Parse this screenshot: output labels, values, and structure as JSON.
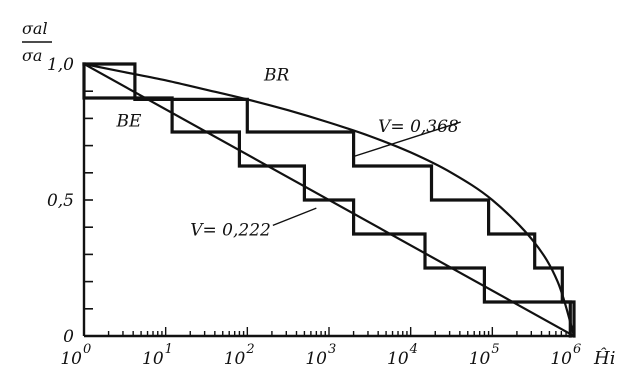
{
  "chart_data": {
    "type": "line",
    "y_axis_label": {
      "numerator": "σal",
      "denominator": "σa"
    },
    "x_axis_label": "Ĥi",
    "x_scale": "log",
    "xlim": [
      1,
      1000000
    ],
    "ylim": [
      0,
      1.0
    ],
    "x_ticks": [
      {
        "value": 1,
        "base": "10",
        "exp": "0"
      },
      {
        "value": 10,
        "base": "10",
        "exp": "1"
      },
      {
        "value": 100,
        "base": "10",
        "exp": "2"
      },
      {
        "value": 1000,
        "base": "10",
        "exp": "3"
      },
      {
        "value": 10000,
        "base": "10",
        "exp": "4"
      },
      {
        "value": 100000,
        "base": "10",
        "exp": "5"
      },
      {
        "value": 1000000,
        "base": "10",
        "exp": "6"
      }
    ],
    "y_ticks": [
      {
        "value": 0,
        "label": "0"
      },
      {
        "value": 0.5,
        "label": "0,5"
      },
      {
        "value": 1.0,
        "label": "1,0"
      }
    ],
    "series": [
      {
        "name": "BR",
        "kind": "curve",
        "points": [
          [
            1,
            1.0
          ],
          [
            3.16,
            0.97
          ],
          [
            10,
            0.94
          ],
          [
            31.6,
            0.905
          ],
          [
            100,
            0.87
          ],
          [
            316,
            0.83
          ],
          [
            1000,
            0.785
          ],
          [
            3160,
            0.735
          ],
          [
            10000,
            0.675
          ],
          [
            31600,
            0.6
          ],
          [
            100000,
            0.5
          ],
          [
            316000,
            0.35
          ],
          [
            630000,
            0.2
          ],
          [
            1000000,
            0.0
          ]
        ]
      },
      {
        "name": "BE",
        "kind": "line",
        "points": [
          [
            1,
            1.0
          ],
          [
            1000000,
            0.0
          ]
        ]
      },
      {
        "name": "V = 0,368",
        "kind": "step",
        "points": [
          [
            1,
            1.0
          ],
          [
            4.2,
            1.0
          ],
          [
            4.2,
            0.87
          ],
          [
            100,
            0.87
          ],
          [
            100,
            0.75
          ],
          [
            2000,
            0.75
          ],
          [
            2000,
            0.625
          ],
          [
            18000,
            0.625
          ],
          [
            18000,
            0.5
          ],
          [
            90000,
            0.5
          ],
          [
            90000,
            0.375
          ],
          [
            330000,
            0.375
          ],
          [
            330000,
            0.25
          ],
          [
            720000,
            0.25
          ],
          [
            720000,
            0.125
          ],
          [
            1000000,
            0.125
          ],
          [
            1000000,
            0.0
          ]
        ]
      },
      {
        "name": "V = 0,222",
        "kind": "step",
        "points": [
          [
            1,
            1.0
          ],
          [
            1,
            0.875
          ],
          [
            12,
            0.875
          ],
          [
            12,
            0.75
          ],
          [
            80,
            0.75
          ],
          [
            80,
            0.625
          ],
          [
            500,
            0.625
          ],
          [
            500,
            0.5
          ],
          [
            2000,
            0.5
          ],
          [
            2000,
            0.375
          ],
          [
            15000,
            0.375
          ],
          [
            15000,
            0.25
          ],
          [
            80000,
            0.25
          ],
          [
            80000,
            0.125
          ],
          [
            900000,
            0.125
          ],
          [
            900000,
            0.0
          ]
        ]
      }
    ],
    "annotations": [
      {
        "text": "BR",
        "x": 160,
        "y": 0.94,
        "anchor": "start"
      },
      {
        "text": "BE",
        "x": 2.5,
        "y": 0.77,
        "anchor": "start"
      },
      {
        "text": "V= 0,368",
        "x": 4000,
        "y": 0.75,
        "anchor": "start",
        "pointer_to": [
          2000,
          0.66
        ]
      },
      {
        "text": "V= 0,222",
        "x": 20,
        "y": 0.37,
        "anchor": "start",
        "pointer_to": [
          700,
          0.47
        ]
      }
    ],
    "grid": false,
    "legend": "none"
  }
}
